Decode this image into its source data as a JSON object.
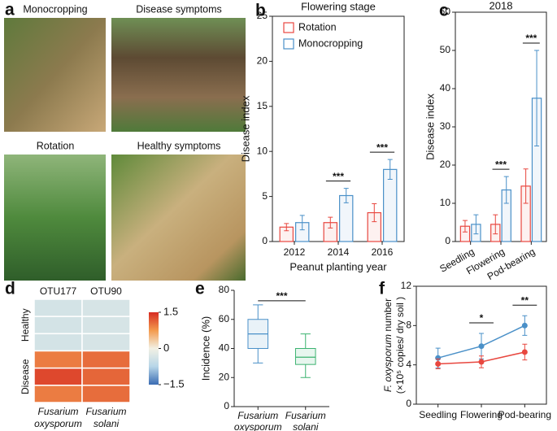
{
  "panel_a": {
    "label": "a",
    "photos": [
      {
        "caption": "Monocropping"
      },
      {
        "caption": "Disease symptoms"
      },
      {
        "caption": "Rotation"
      },
      {
        "caption": "Healthy symptoms"
      }
    ]
  },
  "chart_data": [
    {
      "type": "bar",
      "panel": "b",
      "title": "Flowering stage",
      "xlabel": "Peanut planting year",
      "ylabel": "Disease index",
      "categories": [
        "2012",
        "2014",
        "2016"
      ],
      "series": [
        {
          "name": "Rotation",
          "color": "#e8473f",
          "values": [
            1.6,
            2.1,
            3.2
          ],
          "errors": [
            0.4,
            0.6,
            1.0
          ]
        },
        {
          "name": "Monocropping",
          "color": "#4a90c8",
          "values": [
            2.1,
            5.1,
            8.0
          ],
          "errors": [
            0.8,
            0.8,
            1.1
          ]
        }
      ],
      "ylim": [
        0,
        25
      ],
      "yticks": [
        0,
        5,
        10,
        15,
        20,
        25
      ],
      "legend": "upper left",
      "annotations": [
        {
          "text": "***",
          "category": "2014"
        },
        {
          "text": "***",
          "category": "2016"
        }
      ]
    },
    {
      "type": "bar",
      "panel": "c",
      "title": "2018",
      "ylabel": "Disease index",
      "categories": [
        "Seedling",
        "Flowering",
        "Pod-bearing"
      ],
      "x_label_rotation": -30,
      "series": [
        {
          "color": "#e8473f",
          "values": [
            4.0,
            4.5,
            14.5
          ],
          "errors": [
            1.5,
            2.5,
            4.5
          ]
        },
        {
          "color": "#4a90c8",
          "values": [
            4.5,
            13.5,
            37.5
          ],
          "errors": [
            2.5,
            3.5,
            12.5
          ]
        }
      ],
      "ylim": [
        0,
        60
      ],
      "yticks": [
        0,
        10,
        20,
        30,
        40,
        50,
        60
      ],
      "annotations": [
        {
          "text": "***",
          "category": "Flowering"
        },
        {
          "text": "***",
          "category": "Pod-bearing"
        }
      ]
    },
    {
      "type": "heatmap",
      "panel": "d",
      "columns": [
        "OTU177",
        "OTU90"
      ],
      "row_groups": [
        "Healthy",
        "Disease"
      ],
      "xlabels": [
        [
          "Fusarium",
          "oxysporum"
        ],
        [
          "Fusarium",
          "solani"
        ]
      ],
      "values": [
        [
          -0.4,
          -0.35
        ],
        [
          -0.4,
          -0.35
        ],
        [
          -0.4,
          -0.35
        ],
        [
          0.95,
          1.05
        ],
        [
          1.3,
          1.1
        ],
        [
          0.95,
          1.05
        ]
      ],
      "colormap": [
        "#3a6cb3",
        "#b7d6e8",
        "#f2f1e4",
        "#f39a4d",
        "#d62a22"
      ],
      "colorbar": {
        "lim": [
          -1.5,
          1.5
        ],
        "ticks": [
          1.5,
          0,
          {
            "value": -1.5,
            "label": "−1.5"
          }
        ]
      }
    },
    {
      "type": "box",
      "panel": "e",
      "ylabel": "Incidence (%)",
      "categories": [
        [
          "Fusarium",
          "oxysporum"
        ],
        [
          "Fusarium",
          "solani"
        ]
      ],
      "series": [
        {
          "color": "#4a90c8",
          "min": 30,
          "q1": 40,
          "median": 50,
          "q3": 60,
          "max": 70
        },
        {
          "color": "#3cb371",
          "min": 20,
          "q1": 29,
          "median": 34,
          "q3": 40,
          "max": 50
        }
      ],
      "ylim": [
        0,
        80
      ],
      "yticks": [
        0,
        20,
        40,
        60,
        80
      ],
      "annotations": [
        {
          "text": "***"
        }
      ]
    },
    {
      "type": "line",
      "panel": "f",
      "ylabel": {
        "italic": "F. oxysporum",
        "text": " number",
        "unit": "(×10⁵ copies/ dry soil )"
      },
      "categories": [
        "Seedling",
        "Flowering",
        "Pod-bearing"
      ],
      "series": [
        {
          "color": "#4a90c8",
          "values": [
            4.7,
            5.9,
            8.0
          ],
          "errors": [
            1.0,
            1.3,
            1.0
          ]
        },
        {
          "color": "#e8473f",
          "values": [
            4.1,
            4.3,
            5.3
          ],
          "errors": [
            0.5,
            0.6,
            0.8
          ]
        }
      ],
      "ylim": [
        0,
        12
      ],
      "yticks": [
        0,
        4,
        8,
        12
      ],
      "annotations": [
        {
          "text": "*",
          "category": "Flowering"
        },
        {
          "text": "**",
          "category": "Pod-bearing"
        }
      ]
    }
  ]
}
